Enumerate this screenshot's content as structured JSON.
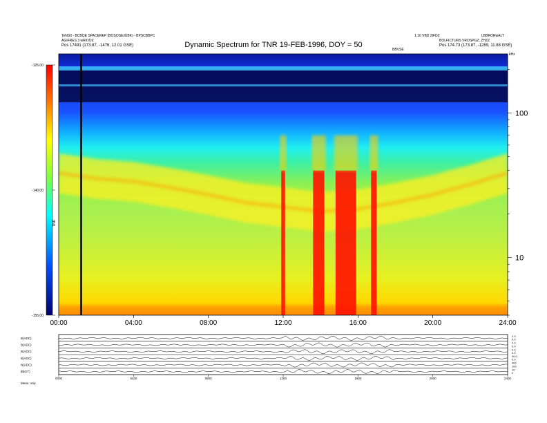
{
  "header": {
    "title": "Dynamic Spectrum for TNR 19-FEB-1996, DOY = 50",
    "info_left": [
      "TeNS0 - BCBQE SPACEREP (BOSOSEJUBK) - BPSCBBPC",
      "AGIFRES 3 wRlOOZ",
      "Pos    17491 (173.87, -1476, 12.01 GSE)"
    ],
    "info_right": [
      "1.10 VBD 2IFDZ",
      "LBBRORwALT",
      "BOLFICTURS VROSPGZ, ZHZZ",
      "Pos    174.73 (173.87, -1289, 11.88 GSE)"
    ],
    "info_center": "BBVSE",
    "corner_mark": "kHz"
  },
  "colorbar": {
    "ticks": [
      "-125.00",
      "-140.00",
      "-155.00"
    ],
    "label": "TNR"
  },
  "chart_data": [
    {
      "type": "heatmap",
      "title": "Dynamic Spectrum for TNR 19-FEB-1996, DOY = 50",
      "x_ticks": [
        "00:00",
        "04:00",
        "08:00",
        "12:00",
        "16:00",
        "20:00",
        "24:00"
      ],
      "x_range_hours": [
        0,
        24
      ],
      "y_scale": "log",
      "y_ticks": [
        "100",
        "10"
      ],
      "y_tick_values": [
        100,
        10
      ],
      "y_range_khz": [
        4,
        256
      ],
      "color_range": [
        -155,
        -125
      ],
      "marker_line_hours": 1.2,
      "features": {
        "plasma_line": [
          [
            0,
            48
          ],
          [
            2,
            44
          ],
          [
            4,
            42
          ],
          [
            6,
            38
          ],
          [
            8,
            34
          ],
          [
            10,
            30
          ],
          [
            12,
            28
          ],
          [
            14,
            26
          ],
          [
            16,
            27
          ],
          [
            18,
            30
          ],
          [
            20,
            34
          ],
          [
            22,
            40
          ],
          [
            24,
            48
          ]
        ],
        "red_bursts_hours": [
          [
            11.9,
            12.1
          ],
          [
            13.6,
            14.2
          ],
          [
            14.8,
            15.9
          ],
          [
            16.7,
            17.0
          ]
        ]
      }
    },
    {
      "type": "line",
      "series": [
        {
          "name": "B(ADC)",
          "right_ticks": [
            "2.0",
            "0.0"
          ]
        },
        {
          "name": "B(ADC)",
          "right_ticks": [
            "2.0",
            "0.0"
          ]
        },
        {
          "name": "B(ADC)",
          "right_ticks": [
            "2.0",
            "0.0"
          ]
        },
        {
          "name": "B(ADC)",
          "right_ticks": [
            "30.0",
            "0.0"
          ]
        },
        {
          "name": "N(ADC)",
          "right_ticks": [
            "400",
            "100"
          ]
        },
        {
          "name": "|B|(nT)",
          "right_ticks": [
            "10",
            "0"
          ]
        }
      ],
      "x_ticks": [
        "0000",
        "0400",
        "0800",
        "1200",
        "1600",
        "2000",
        "2400"
      ],
      "footer_label": "Meas.   only"
    }
  ]
}
